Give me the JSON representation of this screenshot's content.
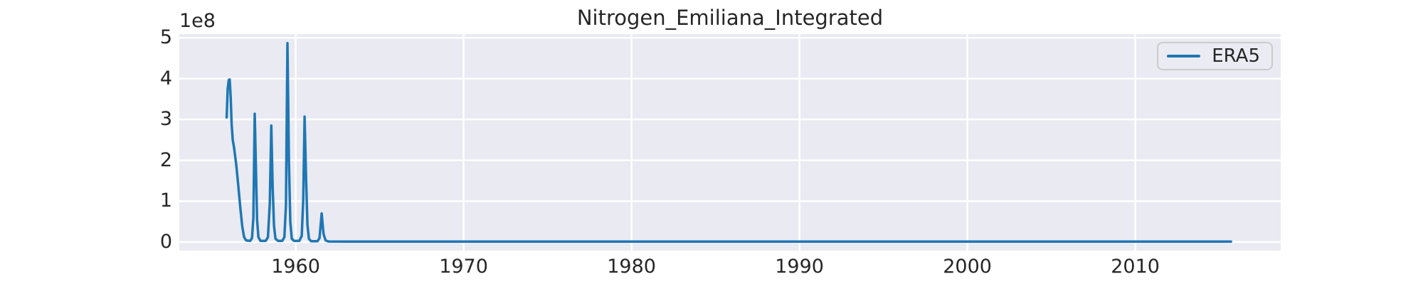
{
  "chart_data": {
    "type": "line",
    "title": "Nitrogen_Emiliana_Integrated",
    "y_offset_label": "1e8",
    "xlabel": "",
    "ylabel": "",
    "grid": true,
    "legend_position": "upper right",
    "xlim": [
      1953.07,
      2018.66
    ],
    "ylim": [
      -21000000,
      509000000
    ],
    "xticks": [
      {
        "v": 1960,
        "label": "1960"
      },
      {
        "v": 1970,
        "label": "1970"
      },
      {
        "v": 1980,
        "label": "1980"
      },
      {
        "v": 1990,
        "label": "1990"
      },
      {
        "v": 2000,
        "label": "2000"
      },
      {
        "v": 2010,
        "label": "2010"
      }
    ],
    "yticks": [
      {
        "v": 0,
        "label": "0"
      },
      {
        "v": 100000000.0,
        "label": "1"
      },
      {
        "v": 200000000.0,
        "label": "2"
      },
      {
        "v": 300000000.0,
        "label": "3"
      },
      {
        "v": 400000000.0,
        "label": "4"
      },
      {
        "v": 500000000.0,
        "label": "5"
      }
    ],
    "colors": {
      "axes_bg": "#eaeaf2",
      "grid": "#ffffff",
      "text": "#262626",
      "line": "#1f77b4",
      "legend_border": "#cbcbcb",
      "legend_bg": "#ebebf3"
    },
    "series": [
      {
        "name": "ERA5",
        "color": "#1f77b4",
        "points": [
          [
            1955.89,
            305000000.0
          ],
          [
            1955.95,
            375000000.0
          ],
          [
            1956.02,
            397000000.0
          ],
          [
            1956.07,
            398000000.0
          ],
          [
            1956.13,
            355000000.0
          ],
          [
            1956.19,
            288000000.0
          ],
          [
            1956.25,
            250000000.0
          ],
          [
            1956.33,
            232000000.0
          ],
          [
            1956.46,
            190000000.0
          ],
          [
            1956.58,
            140000000.0
          ],
          [
            1956.7,
            85000000.0
          ],
          [
            1956.82,
            38000000.0
          ],
          [
            1956.93,
            12000000.0
          ],
          [
            1957.05,
            4000000.0
          ],
          [
            1957.3,
            3000000.0
          ],
          [
            1957.4,
            10000000.0
          ],
          [
            1957.48,
            60000000.0
          ],
          [
            1957.56,
            314000000.0
          ],
          [
            1957.63,
            190000000.0
          ],
          [
            1957.7,
            55000000.0
          ],
          [
            1957.78,
            12000000.0
          ],
          [
            1957.9,
            3000000.0
          ],
          [
            1958.22,
            3000000.0
          ],
          [
            1958.35,
            12000000.0
          ],
          [
            1958.46,
            95000000.0
          ],
          [
            1958.55,
            285000000.0
          ],
          [
            1958.63,
            135000000.0
          ],
          [
            1958.71,
            40000000.0
          ],
          [
            1958.8,
            8000000.0
          ],
          [
            1958.95,
            3000000.0
          ],
          [
            1959.2,
            3000000.0
          ],
          [
            1959.33,
            12000000.0
          ],
          [
            1959.42,
            90000000.0
          ],
          [
            1959.51,
            487000000.0
          ],
          [
            1959.6,
            195000000.0
          ],
          [
            1959.68,
            50000000.0
          ],
          [
            1959.77,
            8000000.0
          ],
          [
            1959.9,
            3000000.0
          ],
          [
            1960.22,
            3000000.0
          ],
          [
            1960.36,
            15000000.0
          ],
          [
            1960.45,
            105000000.0
          ],
          [
            1960.53,
            307000000.0
          ],
          [
            1960.62,
            155000000.0
          ],
          [
            1960.7,
            42000000.0
          ],
          [
            1960.79,
            8000000.0
          ],
          [
            1960.92,
            2000000.0
          ],
          [
            1961.3,
            2000000.0
          ],
          [
            1961.42,
            10000000.0
          ],
          [
            1961.55,
            70000000.0
          ],
          [
            1961.66,
            20000000.0
          ],
          [
            1961.78,
            4000000.0
          ],
          [
            1961.95,
            1500000.0
          ],
          [
            1963.0,
            1000000.0
          ],
          [
            1970.0,
            1000000.0
          ],
          [
            1980.0,
            1000000.0
          ],
          [
            1990.0,
            1000000.0
          ],
          [
            2000.0,
            1000000.0
          ],
          [
            2010.0,
            1000000.0
          ],
          [
            2015.7,
            1000000.0
          ]
        ]
      }
    ]
  }
}
